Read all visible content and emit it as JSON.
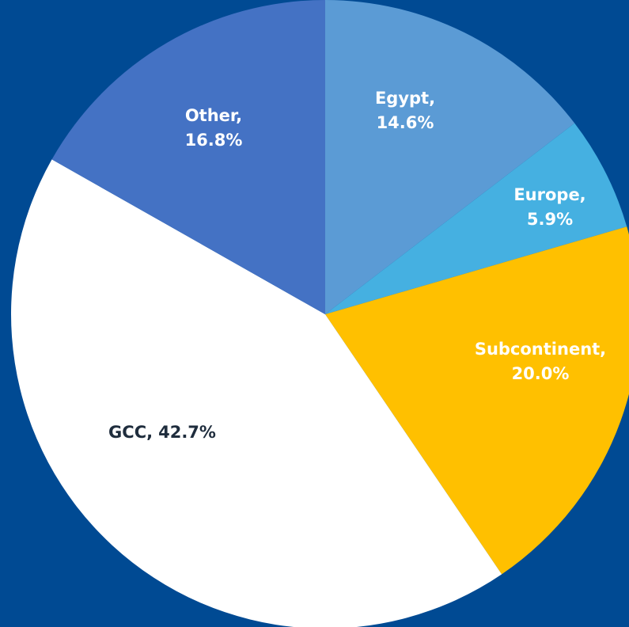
{
  "chart_data": {
    "type": "pie",
    "categories": [
      "Egypt,",
      "Europe,",
      "Subcontinent,",
      "GCC,",
      "Other,"
    ],
    "values": [
      14.6,
      5.9,
      20.0,
      42.7,
      16.8
    ],
    "value_labels": [
      "14.6%",
      "5.9%",
      "20.0%",
      "42.7%",
      "16.8%"
    ],
    "colors": [
      "#5b9bd5",
      "#45b0e1",
      "#ffc000",
      "#ffffff",
      "#4472c4"
    ],
    "label_colors": [
      "#ffffff",
      "#ffffff",
      "#ffffff",
      "#1f2d3d",
      "#ffffff"
    ]
  }
}
